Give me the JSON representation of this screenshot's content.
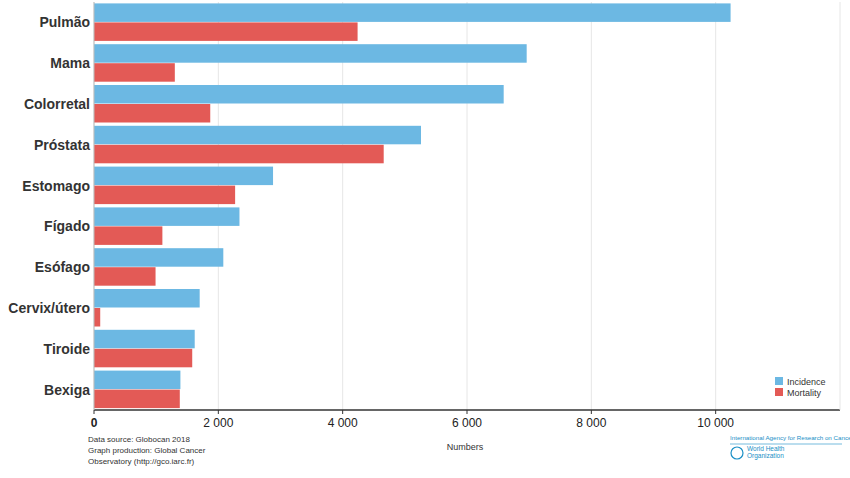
{
  "chart_data": {
    "type": "bar",
    "orientation": "horizontal",
    "categories": [
      "Pulmão",
      "Mama",
      "Colorretal",
      "Próstata",
      "Estomago",
      "Fígado",
      "Esófago",
      "Cervix/útero",
      "Tiroide",
      "Bexiga"
    ],
    "series": [
      {
        "name": "Incidence",
        "color": "#6cb8e3",
        "values": [
          10240,
          6960,
          6590,
          5260,
          2880,
          2340,
          2080,
          1700,
          1620,
          1390
        ]
      },
      {
        "name": "Mortality",
        "color": "#e35a56",
        "values": [
          4240,
          1300,
          1870,
          4660,
          2270,
          1100,
          990,
          100,
          1580,
          1380
        ]
      }
    ],
    "xlim": [
      0,
      12000
    ],
    "xticks": [
      0,
      {
        "value": 2000,
        "label": "2 000"
      },
      {
        "value": 4000,
        "label": "4 000"
      },
      {
        "value": 6000,
        "label": "6 000"
      },
      {
        "value": 8000,
        "label": "8 000"
      },
      {
        "value": 10000,
        "label": "10 000"
      }
    ],
    "xlabel": "Numbers",
    "grid": true,
    "legend": "lower right",
    "annotations": [
      "Data source: Globocan 2018",
      "Graph production: Global Cancer",
      "Observatory (http://gco.iarc.fr)",
      "International Agency for Research on Cancer",
      "World Health Organization"
    ]
  }
}
